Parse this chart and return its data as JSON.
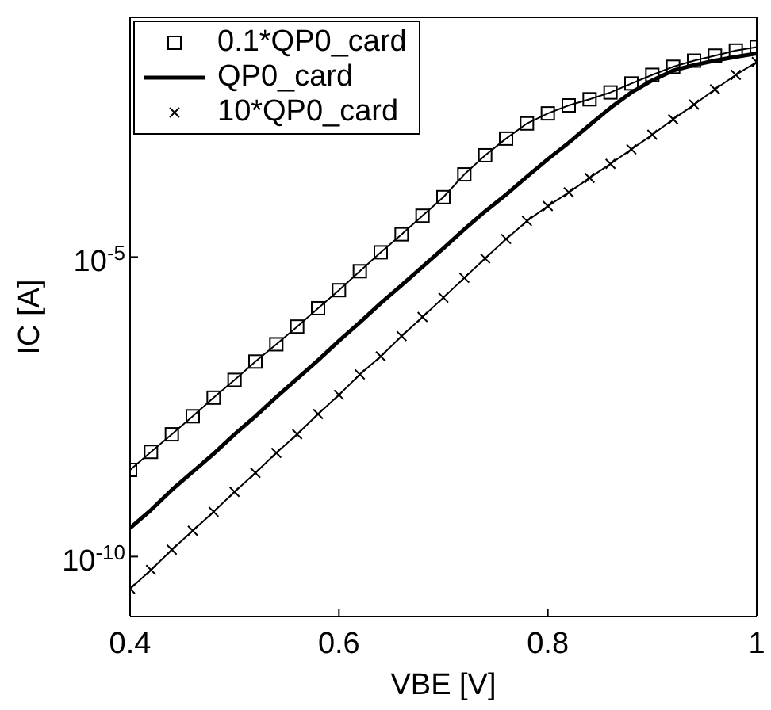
{
  "chart_data": {
    "type": "line",
    "xlabel": "VBE [V]",
    "ylabel": "IC [A]",
    "log": "y",
    "legend": "top left",
    "line_style": "solid",
    "x": [
      0.4,
      0.42,
      0.44,
      0.46,
      0.48,
      0.5,
      0.52,
      0.54,
      0.56,
      0.58,
      0.6,
      0.62,
      0.64,
      0.66,
      0.68,
      0.7,
      0.72,
      0.74,
      0.76,
      0.78,
      0.8,
      0.82,
      0.84,
      0.86,
      0.88,
      0.9,
      0.92,
      0.94,
      0.96,
      0.98,
      1.0
    ],
    "xlim": [
      0.4,
      1
    ],
    "xticks": [
      0.4,
      0.6,
      0.8,
      1
    ],
    "ylim": [
      1e-11,
      0.1
    ],
    "yticks": [
      {
        "value": 1e-10,
        "label": "10$^{-10}$"
      },
      {
        "value": 1e-05,
        "label": "10$^{-5}$"
      }
    ],
    "series": [
      {
        "name": "0.1*QP0_card",
        "color": "#000000",
        "marker": "square",
        "values": [
          2.8e-09,
          5.6e-09,
          1.1e-08,
          2.2e-08,
          4.5e-08,
          8.9e-08,
          1.8e-07,
          3.5e-07,
          6.9e-07,
          1.4e-06,
          2.8e-06,
          5.8e-06,
          1.2e-05,
          2.4e-05,
          4.9e-05,
          0.0001,
          0.00024,
          0.0005,
          0.00095,
          0.0017,
          0.0025,
          0.0034,
          0.0043,
          0.0056,
          0.0079,
          0.011,
          0.015,
          0.019,
          0.023,
          0.028,
          0.032
        ]
      },
      {
        "name": "QP0_card",
        "color": "#000000",
        "marker": "none",
        "values": [
          3e-10,
          6e-10,
          1.3e-09,
          2.6e-09,
          5.2e-09,
          1.1e-08,
          2.2e-08,
          4.6e-08,
          9.3e-08,
          1.9e-07,
          4e-07,
          8.1e-07,
          1.7e-06,
          3.4e-06,
          6.9e-06,
          1.4e-05,
          2.9e-05,
          5.8e-05,
          0.00011,
          0.00022,
          0.00043,
          0.00081,
          0.0016,
          0.0031,
          0.0056,
          0.0089,
          0.013,
          0.016,
          0.019,
          0.022,
          0.025
        ]
      },
      {
        "name": "10*QP0_card",
        "color": "#000000",
        "marker": "cross",
        "values": [
          2.9e-11,
          6e-11,
          1.3e-10,
          2.7e-10,
          5.6e-10,
          1.2e-09,
          2.5e-09,
          5.4e-09,
          1.1e-08,
          2.4e-08,
          5e-08,
          1.1e-07,
          2.2e-07,
          4.8e-07,
          1e-06,
          2.1e-06,
          4.5e-06,
          9.5e-06,
          2e-05,
          4e-05,
          7.1e-05,
          0.00012,
          0.00021,
          0.00036,
          0.00063,
          0.0011,
          0.002,
          0.0035,
          0.0063,
          0.011,
          0.018
        ]
      }
    ]
  }
}
